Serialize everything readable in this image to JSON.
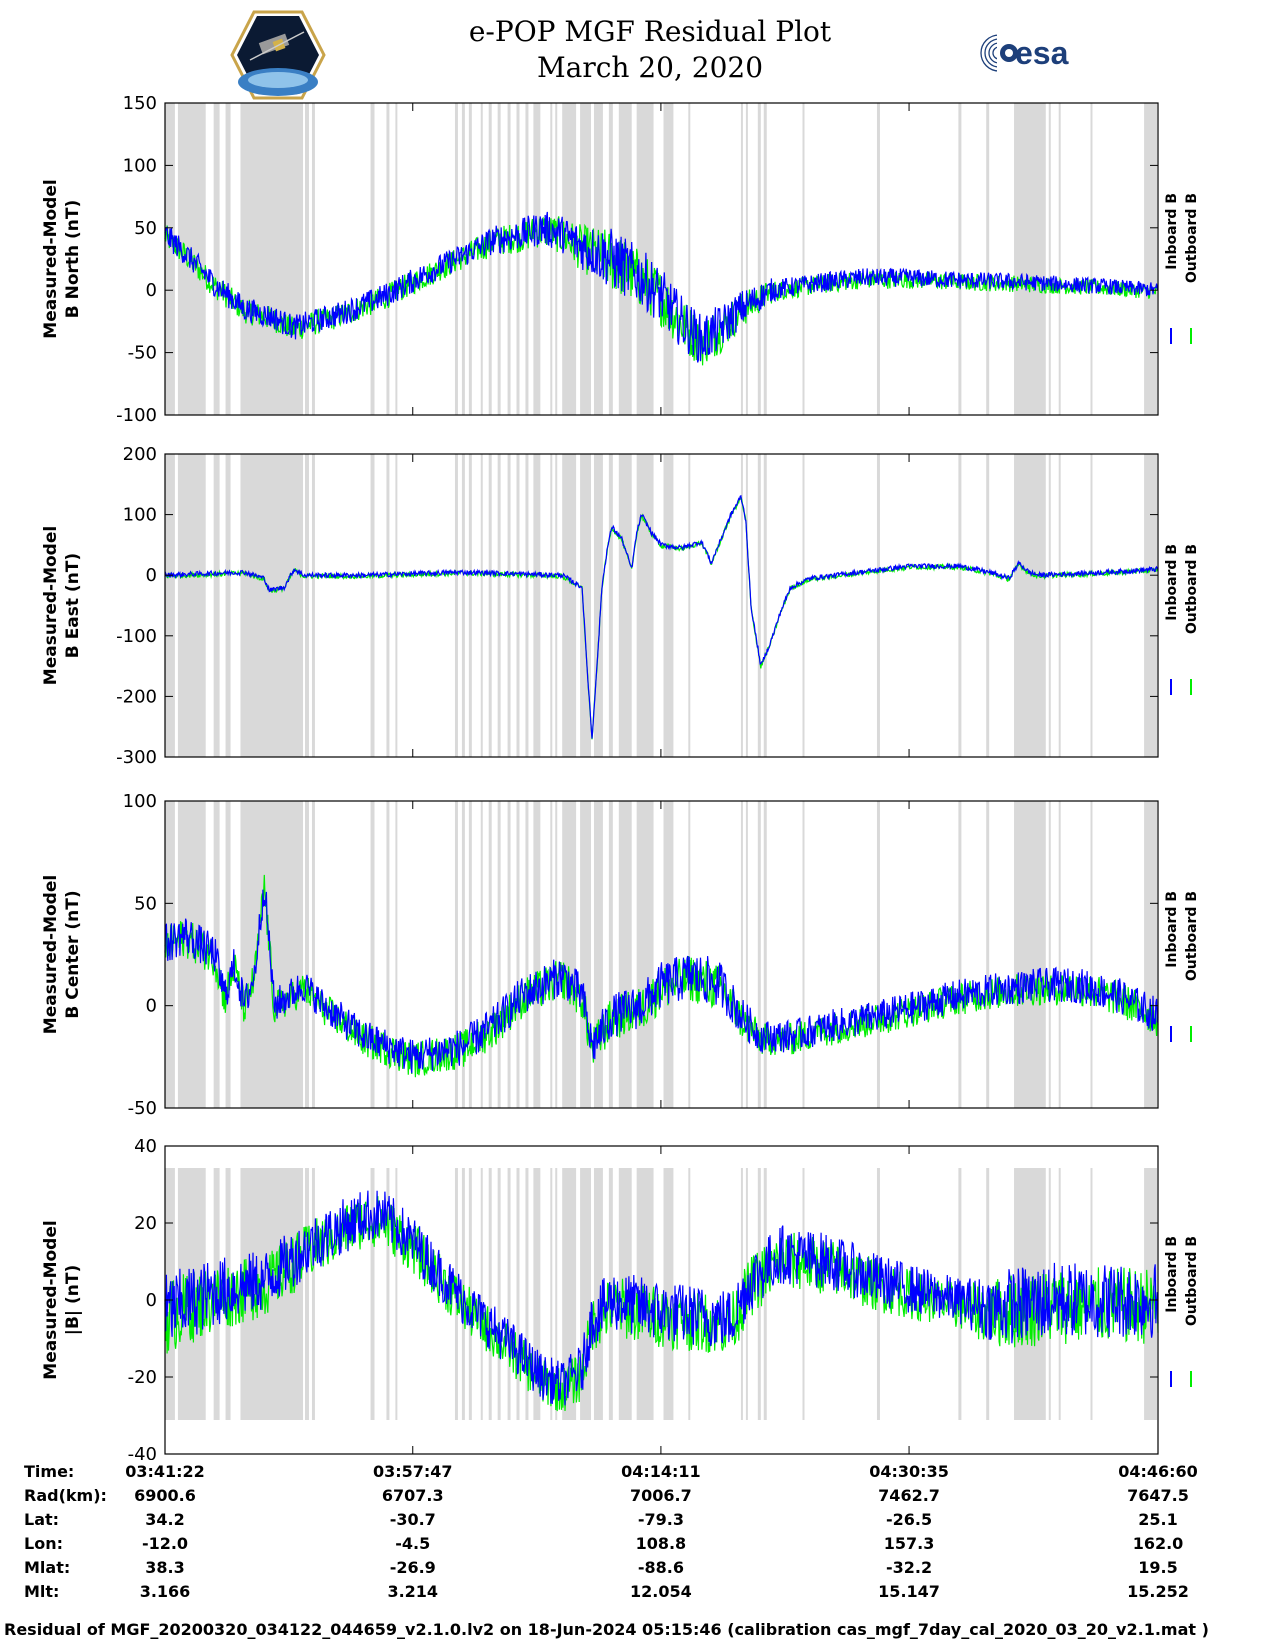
{
  "header": {
    "title": "e-POP MGF Residual Plot",
    "subtitle": "March 20, 2020",
    "esa_logo": "esa"
  },
  "legend": {
    "inboard": "Inboard B",
    "outboard": "Outboard B"
  },
  "colors": {
    "inboard": "#0000ff",
    "outboard": "#00ee00",
    "shade": "#d9d9d9"
  },
  "chart_data": [
    {
      "type": "line",
      "ylabel": [
        "Measured-Model",
        "B North (nT)"
      ],
      "ylim": [
        -100,
        150
      ],
      "yticks": [
        -100,
        -50,
        0,
        50,
        100,
        150
      ],
      "trend": [
        [
          0,
          45
        ],
        [
          0.02,
          30
        ],
        [
          0.05,
          5
        ],
        [
          0.08,
          -15
        ],
        [
          0.11,
          -22
        ],
        [
          0.13,
          -30
        ],
        [
          0.15,
          -25
        ],
        [
          0.18,
          -18
        ],
        [
          0.22,
          -5
        ],
        [
          0.26,
          12
        ],
        [
          0.3,
          28
        ],
        [
          0.33,
          40
        ],
        [
          0.36,
          45
        ],
        [
          0.38,
          50
        ],
        [
          0.4,
          45
        ],
        [
          0.42,
          35
        ],
        [
          0.45,
          25
        ],
        [
          0.48,
          10
        ],
        [
          0.5,
          -5
        ],
        [
          0.52,
          -25
        ],
        [
          0.54,
          -40
        ],
        [
          0.56,
          -30
        ],
        [
          0.58,
          -15
        ],
        [
          0.61,
          0
        ],
        [
          0.65,
          5
        ],
        [
          0.7,
          10
        ],
        [
          0.75,
          10
        ],
        [
          0.8,
          8
        ],
        [
          0.85,
          7
        ],
        [
          0.9,
          5
        ],
        [
          0.95,
          3
        ],
        [
          1.0,
          0
        ]
      ],
      "noise": [
        [
          0,
          10
        ],
        [
          0.3,
          10
        ],
        [
          0.4,
          15
        ],
        [
          0.45,
          25
        ],
        [
          0.55,
          20
        ],
        [
          0.62,
          8
        ],
        [
          1.0,
          6
        ]
      ]
    },
    {
      "type": "line",
      "ylabel": [
        "Measured-Model",
        "B East (nT)"
      ],
      "ylim": [
        -300,
        200
      ],
      "yticks": [
        -300,
        -200,
        -100,
        0,
        100,
        200
      ],
      "trend": [
        [
          0,
          0
        ],
        [
          0.08,
          5
        ],
        [
          0.1,
          -5
        ],
        [
          0.105,
          -25
        ],
        [
          0.12,
          -20
        ],
        [
          0.13,
          10
        ],
        [
          0.14,
          0
        ],
        [
          0.2,
          0
        ],
        [
          0.3,
          5
        ],
        [
          0.4,
          0
        ],
        [
          0.42,
          -20
        ],
        [
          0.425,
          -150
        ],
        [
          0.43,
          -270
        ],
        [
          0.435,
          -150
        ],
        [
          0.44,
          -20
        ],
        [
          0.445,
          40
        ],
        [
          0.45,
          80
        ],
        [
          0.46,
          60
        ],
        [
          0.47,
          10
        ],
        [
          0.475,
          70
        ],
        [
          0.48,
          100
        ],
        [
          0.49,
          70
        ],
        [
          0.5,
          50
        ],
        [
          0.52,
          45
        ],
        [
          0.54,
          55
        ],
        [
          0.545,
          40
        ],
        [
          0.55,
          20
        ],
        [
          0.56,
          60
        ],
        [
          0.57,
          100
        ],
        [
          0.58,
          130
        ],
        [
          0.585,
          90
        ],
        [
          0.59,
          -50
        ],
        [
          0.6,
          -150
        ],
        [
          0.61,
          -110
        ],
        [
          0.62,
          -60
        ],
        [
          0.63,
          -20
        ],
        [
          0.65,
          -5
        ],
        [
          0.7,
          5
        ],
        [
          0.75,
          15
        ],
        [
          0.8,
          15
        ],
        [
          0.83,
          5
        ],
        [
          0.85,
          -5
        ],
        [
          0.86,
          20
        ],
        [
          0.87,
          5
        ],
        [
          0.88,
          0
        ],
        [
          0.95,
          5
        ],
        [
          1.0,
          10
        ]
      ],
      "noise": [
        [
          0,
          4
        ],
        [
          1.0,
          4
        ]
      ]
    },
    {
      "type": "line",
      "ylabel": [
        "Measured-Model",
        "B Center (nT)"
      ],
      "ylim": [
        -50,
        100
      ],
      "yticks": [
        -50,
        0,
        50,
        100
      ],
      "trend": [
        [
          0,
          30
        ],
        [
          0.02,
          35
        ],
        [
          0.05,
          25
        ],
        [
          0.06,
          5
        ],
        [
          0.07,
          20
        ],
        [
          0.08,
          0
        ],
        [
          0.09,
          15
        ],
        [
          0.1,
          60
        ],
        [
          0.105,
          30
        ],
        [
          0.11,
          0
        ],
        [
          0.14,
          10
        ],
        [
          0.16,
          0
        ],
        [
          0.2,
          -15
        ],
        [
          0.25,
          -25
        ],
        [
          0.3,
          -20
        ],
        [
          0.33,
          -10
        ],
        [
          0.36,
          5
        ],
        [
          0.4,
          15
        ],
        [
          0.42,
          5
        ],
        [
          0.43,
          -20
        ],
        [
          0.45,
          -5
        ],
        [
          0.48,
          0
        ],
        [
          0.5,
          10
        ],
        [
          0.53,
          15
        ],
        [
          0.56,
          10
        ],
        [
          0.58,
          -5
        ],
        [
          0.6,
          -15
        ],
        [
          0.63,
          -15
        ],
        [
          0.67,
          -10
        ],
        [
          0.72,
          -5
        ],
        [
          0.76,
          0
        ],
        [
          0.8,
          5
        ],
        [
          0.84,
          8
        ],
        [
          0.88,
          10
        ],
        [
          0.92,
          10
        ],
        [
          0.96,
          5
        ],
        [
          1.0,
          -5
        ]
      ],
      "noise": [
        [
          0,
          10
        ],
        [
          0.15,
          8
        ],
        [
          0.4,
          10
        ],
        [
          0.55,
          12
        ],
        [
          0.6,
          8
        ],
        [
          0.8,
          8
        ],
        [
          1.0,
          9
        ]
      ]
    },
    {
      "type": "line",
      "ylabel": [
        "Measured-Model",
        "|B| (nT)"
      ],
      "ylim": [
        -40,
        40
      ],
      "yticks": [
        -40,
        -20,
        0,
        20,
        40
      ],
      "trend": [
        [
          0,
          -3
        ],
        [
          0.05,
          2
        ],
        [
          0.1,
          5
        ],
        [
          0.15,
          15
        ],
        [
          0.2,
          22
        ],
        [
          0.22,
          22
        ],
        [
          0.25,
          15
        ],
        [
          0.3,
          0
        ],
        [
          0.35,
          -12
        ],
        [
          0.38,
          -20
        ],
        [
          0.4,
          -22
        ],
        [
          0.42,
          -18
        ],
        [
          0.43,
          -5
        ],
        [
          0.45,
          0
        ],
        [
          0.5,
          -3
        ],
        [
          0.57,
          -5
        ],
        [
          0.59,
          5
        ],
        [
          0.62,
          12
        ],
        [
          0.67,
          10
        ],
        [
          0.72,
          5
        ],
        [
          0.78,
          1
        ],
        [
          0.83,
          -2
        ],
        [
          0.9,
          0
        ],
        [
          0.95,
          0
        ],
        [
          1.0,
          0
        ]
      ],
      "noise": [
        [
          0,
          10
        ],
        [
          0.1,
          8
        ],
        [
          0.2,
          7
        ],
        [
          0.4,
          6
        ],
        [
          0.45,
          8
        ],
        [
          0.55,
          8
        ],
        [
          0.6,
          8
        ],
        [
          0.8,
          6
        ],
        [
          0.85,
          10
        ],
        [
          1.0,
          10
        ]
      ]
    }
  ],
  "shade_intervals": [
    [
      0.0,
      0.01
    ],
    [
      0.013,
      0.041
    ],
    [
      0.049,
      0.055
    ],
    [
      0.061,
      0.066
    ],
    [
      0.076,
      0.139
    ],
    [
      0.141,
      0.145
    ],
    [
      0.148,
      0.151
    ],
    [
      0.207,
      0.211
    ],
    [
      0.223,
      0.226
    ],
    [
      0.232,
      0.234
    ],
    [
      0.292,
      0.295
    ],
    [
      0.299,
      0.302
    ],
    [
      0.306,
      0.309
    ],
    [
      0.318,
      0.32
    ],
    [
      0.326,
      0.329
    ],
    [
      0.335,
      0.338
    ],
    [
      0.345,
      0.348
    ],
    [
      0.354,
      0.357
    ],
    [
      0.363,
      0.366
    ],
    [
      0.371,
      0.378
    ],
    [
      0.388,
      0.39
    ],
    [
      0.393,
      0.395
    ],
    [
      0.4,
      0.414
    ],
    [
      0.418,
      0.429
    ],
    [
      0.432,
      0.441
    ],
    [
      0.447,
      0.451
    ],
    [
      0.457,
      0.47
    ],
    [
      0.475,
      0.492
    ],
    [
      0.502,
      0.512
    ],
    [
      0.527,
      0.529
    ],
    [
      0.58,
      0.582
    ],
    [
      0.585,
      0.587
    ],
    [
      0.597,
      0.6
    ],
    [
      0.603,
      0.606
    ],
    [
      0.642,
      0.644
    ],
    [
      0.717,
      0.72
    ],
    [
      0.799,
      0.802
    ],
    [
      0.827,
      0.83
    ],
    [
      0.855,
      0.887
    ],
    [
      0.89,
      0.892
    ],
    [
      0.9,
      0.902
    ],
    [
      0.932,
      0.934
    ],
    [
      0.986,
      0.999
    ]
  ],
  "time_table": {
    "labels": [
      "Time:",
      "Rad(km):",
      "Lat:",
      "Lon:",
      "Mlat:",
      "Mlt:"
    ],
    "columns": [
      [
        "03:41:22",
        "6900.6",
        "34.2",
        "-12.0",
        "38.3",
        "3.166"
      ],
      [
        "03:57:47",
        "6707.3",
        "-30.7",
        "-4.5",
        "-26.9",
        "3.214"
      ],
      [
        "04:14:11",
        "7006.7",
        "-79.3",
        "108.8",
        "-88.6",
        "12.054"
      ],
      [
        "04:30:35",
        "7462.7",
        "-26.5",
        "157.3",
        "-32.2",
        "15.147"
      ],
      [
        "04:46:60",
        "7647.5",
        "25.1",
        "162.0",
        "19.5",
        "15.252"
      ]
    ]
  },
  "footer": "Residual of MGF_20200320_034122_044659_v2.1.0.lv2 on 18-Jun-2024 05:15:46 (calibration cas_mgf_7day_cal_2020_03_20_v2.1.mat )"
}
